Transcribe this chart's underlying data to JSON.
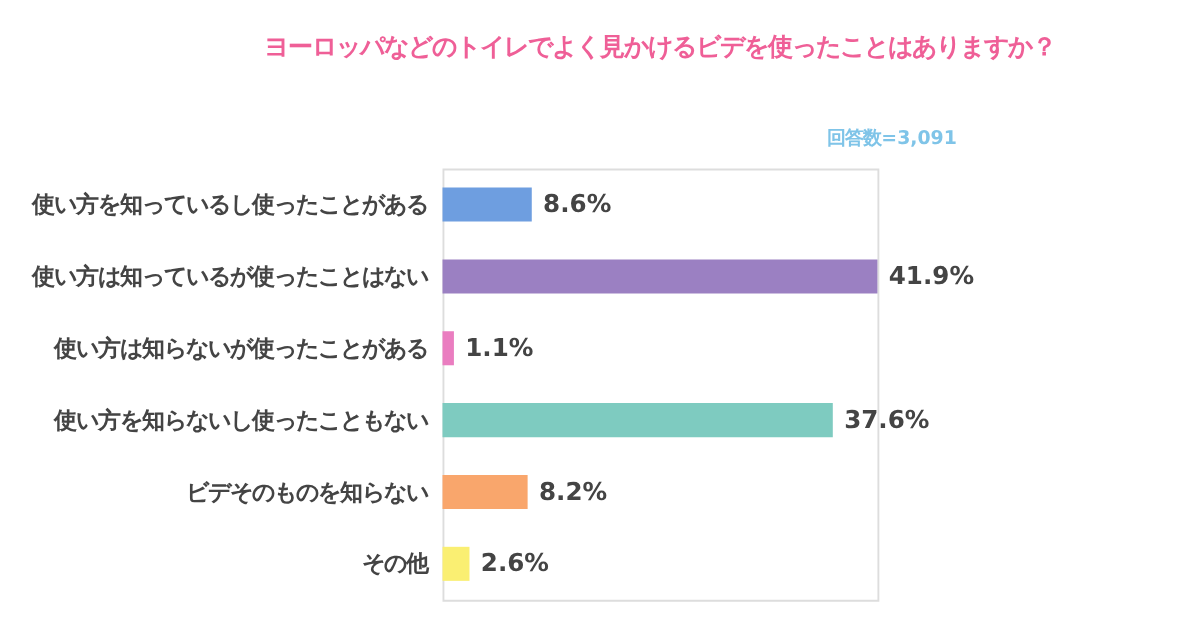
{
  "chart_data": {
    "type": "bar",
    "orientation": "horizontal",
    "title": "ヨーロッパなどのトイレでよく見かけるビデを使ったことはありますか？",
    "categories": [
      "使い方を知っているし使ったことがある",
      "使い方は知っているが使ったことはない",
      "使い方は知らないが使ったことがある",
      "使い方を知らないし使ったこともない",
      "ビデそのものを知らない",
      "その他"
    ],
    "values": [
      8.6,
      41.9,
      1.1,
      37.6,
      8.2,
      2.6
    ],
    "colors": [
      "#6e9ee0",
      "#9b80c2",
      "#ea7dc0",
      "#7ecbc0",
      "#f9a66c",
      "#faef72"
    ],
    "value_labels": [
      "8.6%",
      "41.9%",
      "1.1%",
      "37.6%",
      "8.2%",
      "2.6%"
    ],
    "annotations": [
      "回答数=3,091"
    ]
  }
}
